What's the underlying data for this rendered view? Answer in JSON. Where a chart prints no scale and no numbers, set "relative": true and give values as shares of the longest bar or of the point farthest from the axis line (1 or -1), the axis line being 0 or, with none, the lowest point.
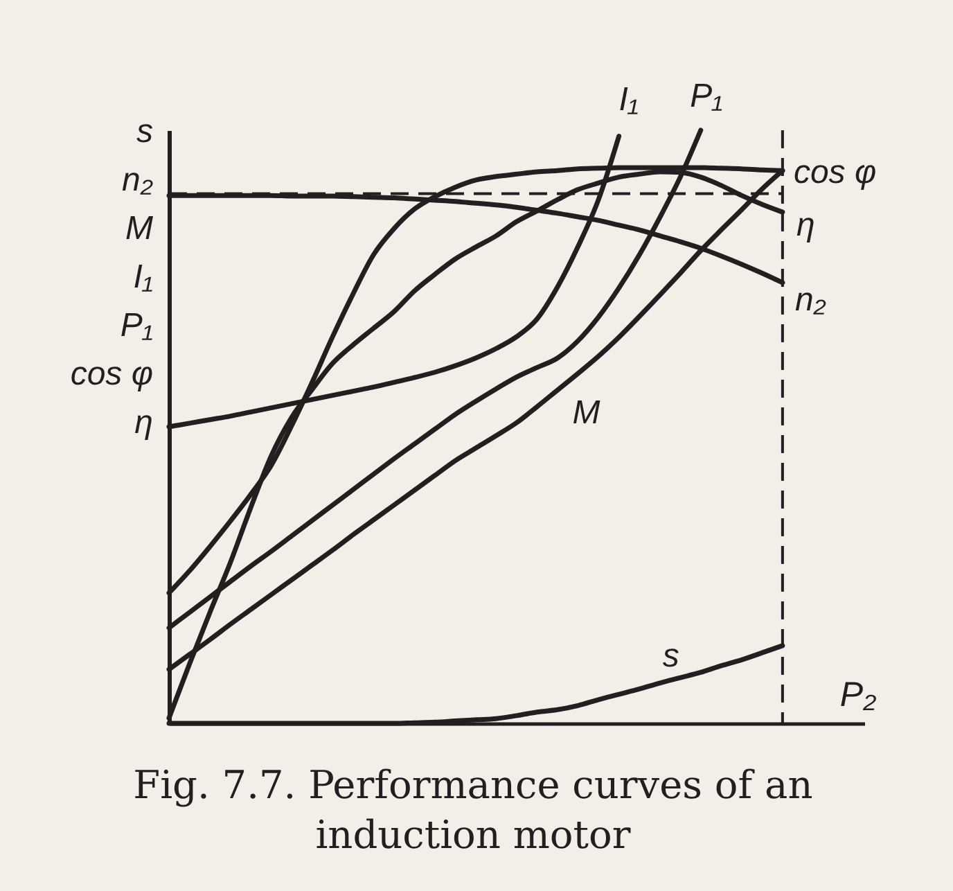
{
  "chart_data": {
    "type": "line",
    "title": "Fig. 7.7. Performance curves of an induction motor",
    "xlabel": "P₂",
    "ylabel": "s\nn₂\nM\nI₁\nP₁\ncos φ\nη",
    "relative": true,
    "categories": [
      null,
      null,
      null,
      null,
      null,
      null,
      null,
      null,
      null,
      null,
      null,
      null,
      null,
      null,
      null,
      null,
      null,
      null,
      null,
      null,
      null,
      null,
      null,
      null,
      null,
      null,
      null,
      null,
      null,
      null,
      null,
      null,
      null,
      null,
      null
    ],
    "series": [
      {
        "name": "s",
        "color": "#231f20",
        "values": [
          0,
          0,
          0,
          0,
          0,
          0,
          0,
          0,
          0,
          0,
          0,
          0,
          0.001,
          0.002,
          0.004,
          0.006,
          0.008,
          0.013,
          0.019,
          0.023,
          0.03,
          0.04,
          0.049,
          0.058,
          0.068,
          0.077,
          0.086,
          0.097,
          0.107,
          0.119,
          0.131,
          null,
          null,
          null,
          null
        ]
      },
      {
        "name": "n₂",
        "color": "#231f20",
        "values": [
          0.89,
          0.89,
          0.89,
          0.89,
          0.89,
          0.89,
          0.889,
          0.889,
          0.889,
          0.888,
          0.887,
          0.886,
          0.884,
          0.882,
          0.88,
          0.877,
          0.874,
          0.87,
          0.865,
          0.86,
          0.854,
          0.848,
          0.84,
          0.832,
          0.822,
          0.812,
          0.801,
          0.788,
          0.774,
          0.759,
          0.743,
          null,
          null,
          null,
          null
        ]
      },
      {
        "name": "M",
        "color": "#231f20",
        "values": [
          0.091,
          0.116,
          0.141,
          0.167,
          0.192,
          0.217,
          0.242,
          0.267,
          0.292,
          0.318,
          0.343,
          0.368,
          0.393,
          0.418,
          0.443,
          0.464,
          0.485,
          0.507,
          0.534,
          0.562,
          0.59,
          0.619,
          0.651,
          0.686,
          0.722,
          0.759,
          0.797,
          0.832,
          0.866,
          0.901,
          0.932,
          null,
          null,
          null,
          null
        ]
      },
      {
        "name": "I₁",
        "color": "#231f20",
        "values": [
          0.5,
          0.506,
          0.512,
          0.518,
          0.525,
          0.532,
          0.539,
          0.546,
          0.553,
          0.56,
          0.567,
          0.575,
          0.583,
          0.592,
          0.603,
          0.616,
          0.632,
          0.652,
          0.682,
          0.736,
          0.804,
          0.883,
          0.99,
          null,
          null,
          null,
          null,
          null,
          null,
          null,
          null,
          null,
          null,
          null,
          null
        ]
      },
      {
        "name": "P₁",
        "color": "#231f20",
        "values": [
          0.161,
          0.187,
          0.213,
          0.239,
          0.265,
          0.29,
          0.316,
          0.342,
          0.368,
          0.394,
          0.42,
          0.446,
          0.471,
          0.496,
          0.521,
          0.543,
          0.564,
          0.584,
          0.6,
          0.616,
          0.645,
          0.685,
          0.734,
          0.79,
          0.853,
          0.921,
          1,
          null,
          null,
          null,
          null,
          null,
          null,
          null,
          null
        ]
      },
      {
        "name": "cos φ",
        "color": "#231f20",
        "values": [
          0.22,
          0.257,
          0.298,
          0.341,
          0.386,
          0.435,
          0.502,
          0.575,
          0.652,
          0.724,
          0.79,
          0.834,
          0.867,
          0.888,
          0.904,
          0.916,
          0.922,
          0.926,
          0.93,
          0.932,
          0.935,
          0.936,
          0.937,
          0.937,
          0.937,
          0.937,
          0.937,
          0.936,
          0.935,
          0.933,
          0.932,
          null,
          null,
          null,
          null
        ]
      },
      {
        "name": "η",
        "color": "#231f20",
        "values": [
          0.009,
          0.1,
          0.187,
          0.271,
          0.364,
          0.451,
          0.516,
          0.563,
          0.607,
          0.638,
          0.666,
          0.694,
          0.729,
          0.757,
          0.783,
          0.803,
          0.822,
          0.846,
          0.864,
          0.883,
          0.9,
          0.911,
          0.921,
          0.926,
          0.93,
          0.929,
          0.921,
          0.907,
          0.89,
          0.875,
          0.862,
          null,
          null,
          null,
          null
        ]
      }
    ],
    "ref_lines": [
      {
        "axis": "y",
        "value": 0.893,
        "line_style": "dashed",
        "color": "#231f20"
      }
    ]
  }
}
